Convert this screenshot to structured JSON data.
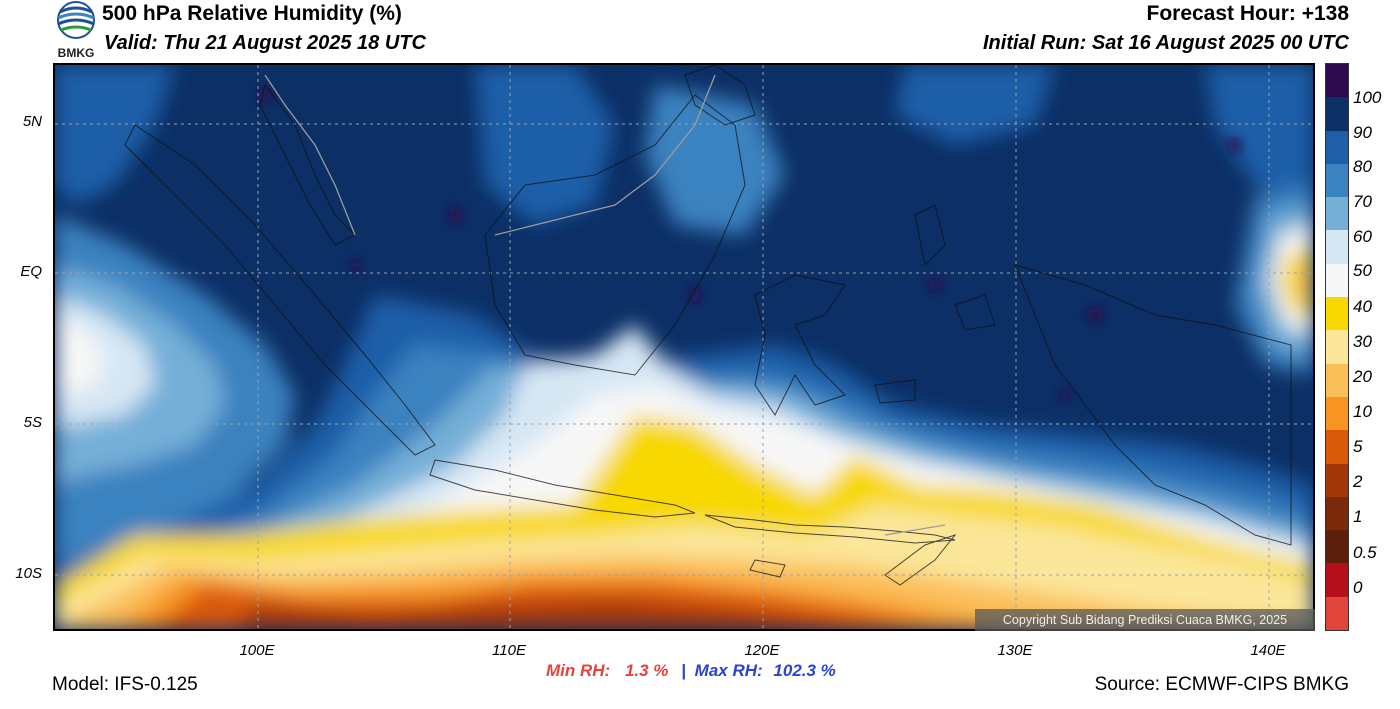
{
  "header": {
    "title": "500 hPa Relative Humidity (%)",
    "valid": "Valid: Thu 21 August 2025 18 UTC",
    "forecast_hour": "Forecast Hour: +138",
    "initial_run": "Initial Run: Sat 16 August 2025 00 UTC",
    "logo_text": "BMKG"
  },
  "map": {
    "lat_labels": [
      "5N",
      "EQ",
      "5S",
      "10S"
    ],
    "lon_labels": [
      "100E",
      "110E",
      "120E",
      "130E",
      "140E"
    ],
    "copyright": "Copyright Sub Bidang Prediksi Cuaca BMKG, 2025"
  },
  "colorbar": {
    "labels": [
      "100",
      "90",
      "80",
      "70",
      "60",
      "50",
      "40",
      "30",
      "20",
      "10",
      "5",
      "2",
      "1",
      "0.5",
      "0"
    ],
    "colors": [
      "#2b0a4d",
      "#0c2f66",
      "#1f5fa8",
      "#3a82c0",
      "#75afd8",
      "#d6e7f4",
      "#f7f7f7",
      "#f7d800",
      "#fbe69a",
      "#fbbf5a",
      "#f89423",
      "#d9590a",
      "#a43708",
      "#7a2a0a",
      "#5c1f0c",
      "#b40f1a",
      "#e0443a"
    ]
  },
  "stats": {
    "min_label": "Min RH:",
    "min_value": "1.3 %",
    "separator": "|",
    "max_label": "Max RH:",
    "max_value": "102.3 %"
  },
  "footer": {
    "model": "Model: IFS-0.125",
    "source": "Source: ECMWF-CIPS BMKG"
  }
}
